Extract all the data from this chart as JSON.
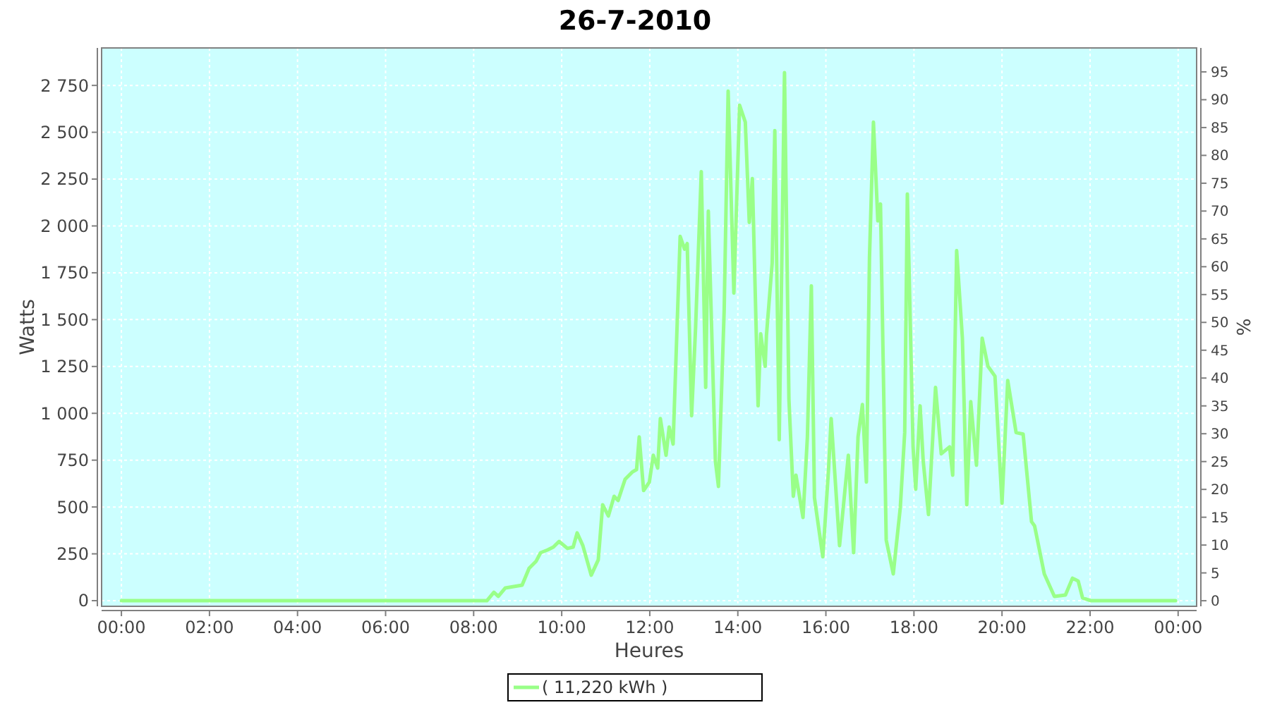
{
  "chart_data": {
    "type": "line",
    "title": "26-7-2010",
    "xlabel": "Heures",
    "ylabel": "Watts",
    "y2label": "%",
    "series": [
      {
        "name": "( 11,220 kWh )",
        "color": "#99ff88",
        "x": [
          0,
          8.3,
          8.46,
          8.56,
          8.72,
          9.1,
          9.26,
          9.42,
          9.52,
          9.68,
          9.81,
          9.94,
          10.13,
          10.26,
          10.35,
          10.48,
          10.67,
          10.83,
          10.93,
          11.06,
          11.19,
          11.28,
          11.44,
          11.6,
          11.7,
          11.76,
          11.86,
          11.99,
          12.08,
          12.18,
          12.24,
          12.37,
          12.44,
          12.53,
          12.56,
          12.69,
          12.79,
          12.85,
          12.95,
          13.04,
          13.17,
          13.27,
          13.33,
          13.49,
          13.56,
          13.69,
          13.78,
          13.91,
          14.04,
          14.17,
          14.26,
          14.33,
          14.46,
          14.52,
          14.62,
          14.65,
          14.78,
          14.84,
          14.94,
          15.0,
          15.06,
          15.16,
          15.26,
          15.32,
          15.48,
          15.58,
          15.67,
          15.74,
          15.83,
          15.93,
          16.06,
          16.12,
          16.31,
          16.51,
          16.63,
          16.73,
          16.83,
          16.92,
          16.99,
          17.08,
          17.18,
          17.24,
          17.37,
          17.53,
          17.69,
          17.79,
          17.85,
          17.98,
          18.04,
          18.14,
          18.21,
          18.33,
          18.49,
          18.62,
          18.81,
          18.88,
          18.97,
          19.1,
          19.2,
          19.29,
          19.42,
          19.55,
          19.68,
          19.84,
          20.0,
          20.13,
          20.32,
          20.48,
          20.67,
          20.74,
          20.96,
          21.19,
          21.44,
          21.6,
          21.73,
          21.83,
          22.02,
          23.94
        ],
        "values": [
          0,
          0,
          45,
          23,
          68,
          83,
          173,
          211,
          256,
          271,
          286,
          316,
          279,
          286,
          362,
          294,
          136,
          218,
          512,
          452,
          557,
          535,
          648,
          686,
          700,
          874,
          588,
          633,
          776,
          708,
          972,
          776,
          927,
          836,
          1047,
          1944,
          1876,
          1906,
          987,
          1454,
          2290,
          1138,
          2079,
          746,
          610,
          1552,
          2720,
          1642,
          2644,
          2554,
          2019,
          2253,
          1040,
          1424,
          1251,
          1416,
          1801,
          2509,
          859,
          1831,
          2818,
          1077,
          557,
          670,
          444,
          874,
          1680,
          550,
          399,
          234,
          700,
          972,
          294,
          776,
          256,
          874,
          1047,
          633,
          1831,
          2554,
          2027,
          2117,
          324,
          143,
          497,
          897,
          2170,
          821,
          595,
          1040,
          746,
          460,
          1138,
          784,
          821,
          670,
          1868,
          1401,
          512,
          1062,
          723,
          1401,
          1251,
          1198,
          520,
          1175,
          897,
          889,
          422,
          399,
          143,
          23,
          30,
          120,
          105,
          15,
          0,
          0
        ]
      }
    ],
    "xlim": [
      -0.45,
      24.42
    ],
    "xticks": [
      {
        "value": 0,
        "label": "00:00"
      },
      {
        "value": 2,
        "label": "02:00"
      },
      {
        "value": 4,
        "label": "04:00"
      },
      {
        "value": 6,
        "label": "06:00"
      },
      {
        "value": 8,
        "label": "08:00"
      },
      {
        "value": 10,
        "label": "10:00"
      },
      {
        "value": 12,
        "label": "12:00"
      },
      {
        "value": 14,
        "label": "14:00"
      },
      {
        "value": 16,
        "label": "16:00"
      },
      {
        "value": 18,
        "label": "18:00"
      },
      {
        "value": 20,
        "label": "20:00"
      },
      {
        "value": 22,
        "label": "22:00"
      },
      {
        "value": 24,
        "label": "00:00"
      }
    ],
    "ylim": [
      -30,
      2950
    ],
    "yticks": [
      0,
      250,
      500,
      750,
      {
        "value": 1000,
        "label": "1 000"
      },
      {
        "value": 1250,
        "label": "1 250"
      },
      {
        "value": 1500,
        "label": "1 500"
      },
      {
        "value": 1750,
        "label": "1 750"
      },
      {
        "value": 2000,
        "label": "2 000"
      },
      {
        "value": 2250,
        "label": "2 250"
      },
      {
        "value": 2500,
        "label": "2 500"
      },
      {
        "value": 2750,
        "label": "2 750"
      }
    ],
    "y2lim": [
      -1,
      99.3
    ],
    "y2ticks": [
      0,
      5,
      10,
      15,
      20,
      25,
      30,
      35,
      40,
      45,
      50,
      55,
      60,
      65,
      70,
      75,
      80,
      85,
      90,
      95
    ],
    "grid": true,
    "legend": "bottom",
    "line_style": "solid"
  }
}
